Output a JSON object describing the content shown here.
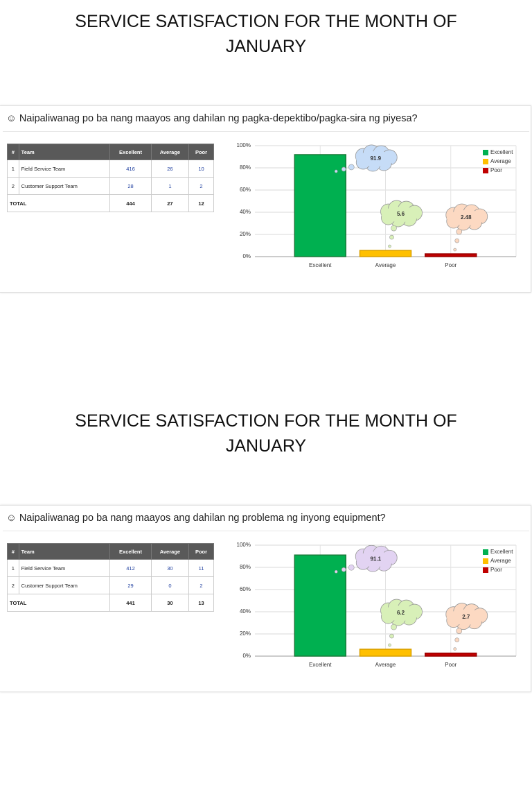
{
  "slides": [
    {
      "title": "SERVICE SATISFACTION FOR THE MONTH OF JANUARY",
      "question": "☺ Naipaliwanag po ba nang maayos ang dahilan ng pagka-depektibo/pagka-sira ng piyesa?",
      "table": {
        "headers": [
          "#",
          "Team",
          "Excellent",
          "Average",
          "Poor"
        ],
        "rows": [
          [
            1,
            "Field Service Team",
            416,
            26,
            10
          ],
          [
            2,
            "Customer Support Team",
            28,
            1,
            2
          ]
        ],
        "total": [
          "TOTAL",
          444,
          27,
          12
        ]
      }
    },
    {
      "title": "SERVICE SATISFACTION FOR THE MONTH OF JANUARY",
      "question": "☺ Naipaliwanag po ba nang maayos ang dahilan ng problema ng inyong equipment?",
      "table": {
        "headers": [
          "#",
          "Team",
          "Excellent",
          "Average",
          "Poor"
        ],
        "rows": [
          [
            1,
            "Field Service Team",
            412,
            30,
            11
          ],
          [
            2,
            "Customer Support Team",
            29,
            0,
            2
          ]
        ],
        "total": [
          "TOTAL",
          441,
          30,
          13
        ]
      }
    }
  ],
  "chart_data": [
    {
      "type": "bar",
      "categories": [
        "Excellent",
        "Average",
        "Poor"
      ],
      "values": [
        91.9,
        5.6,
        2.48
      ],
      "colors": [
        "#00b050",
        "#ffc000",
        "#c00000"
      ],
      "callout_colors": [
        "#c6dcf7",
        "#d8f0b8",
        "#fcd9c2"
      ],
      "ylim": [
        0,
        100
      ],
      "yticks": [
        {
          "value": 0,
          "label": "0%"
        },
        {
          "value": 20,
          "label": "20%"
        },
        {
          "value": 40,
          "label": "40%"
        },
        {
          "value": 60,
          "label": "60%"
        },
        {
          "value": 80,
          "label": "80%"
        },
        {
          "value": 100,
          "label": "100%"
        }
      ],
      "grid": true,
      "legend": "top-right"
    },
    {
      "type": "bar",
      "categories": [
        "Excellent",
        "Average",
        "Poor"
      ],
      "values": [
        91.1,
        6.2,
        2.7
      ],
      "colors": [
        "#00b050",
        "#ffc000",
        "#c00000"
      ],
      "callout_colors": [
        "#e2d3f2",
        "#d8f0b8",
        "#fcd9c2"
      ],
      "ylim": [
        0,
        100
      ],
      "yticks": [
        {
          "value": 0,
          "label": "0%"
        },
        {
          "value": 20,
          "label": "20%"
        },
        {
          "value": 40,
          "label": "40%"
        },
        {
          "value": 60,
          "label": "60%"
        },
        {
          "value": 80,
          "label": "80%"
        },
        {
          "value": 100,
          "label": "100%"
        }
      ],
      "grid": true,
      "legend": "top-right"
    }
  ]
}
